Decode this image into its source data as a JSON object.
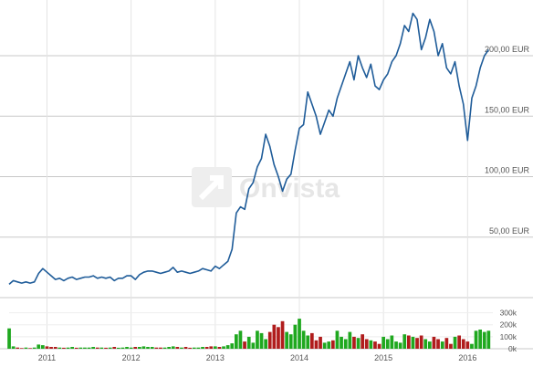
{
  "chart_data": [
    {
      "type": "line",
      "y_unit": "EUR",
      "ylim": [
        0,
        240
      ],
      "y_ticks": [
        {
          "value": 50,
          "label": "50,00 EUR"
        },
        {
          "value": 100,
          "label": "100,00 EUR"
        },
        {
          "value": 150,
          "label": "150,00 EUR"
        },
        {
          "value": 200,
          "label": "200,00 EUR"
        }
      ],
      "x_ticks": [
        {
          "x": 2011,
          "label": "2011"
        },
        {
          "x": 2012,
          "label": "2012"
        },
        {
          "x": 2013,
          "label": "2013"
        },
        {
          "x": 2014,
          "label": "2014"
        },
        {
          "x": 2015,
          "label": "2015"
        },
        {
          "x": 2016,
          "label": "2016"
        }
      ],
      "xlim": [
        2010.55,
        2016.3
      ],
      "grid": true,
      "color": "#1f5c99",
      "series": [
        {
          "x": [
            2010.55,
            2010.6,
            2010.65,
            2010.7,
            2010.75,
            2010.8,
            2010.85,
            2010.9,
            2010.95,
            2011.0,
            2011.05,
            2011.1,
            2011.15,
            2011.2,
            2011.25,
            2011.3,
            2011.35,
            2011.4,
            2011.45,
            2011.5,
            2011.55,
            2011.6,
            2011.65,
            2011.7,
            2011.75,
            2011.8,
            2011.85,
            2011.9,
            2011.95,
            2012.0,
            2012.05,
            2012.1,
            2012.15,
            2012.2,
            2012.25,
            2012.3,
            2012.35,
            2012.4,
            2012.45,
            2012.5,
            2012.55,
            2012.6,
            2012.65,
            2012.7,
            2012.75,
            2012.8,
            2012.85,
            2012.9,
            2012.95,
            2013.0,
            2013.05,
            2013.1,
            2013.15,
            2013.2,
            2013.25,
            2013.3,
            2013.35,
            2013.4,
            2013.45,
            2013.5,
            2013.55,
            2013.6,
            2013.65,
            2013.7,
            2013.75,
            2013.8,
            2013.85,
            2013.9,
            2013.95,
            2014.0,
            2014.05,
            2014.1,
            2014.15,
            2014.2,
            2014.25,
            2014.3,
            2014.35,
            2014.4,
            2014.45,
            2014.5,
            2014.55,
            2014.6,
            2014.65,
            2014.7,
            2014.75,
            2014.8,
            2014.85,
            2014.9,
            2014.95,
            2015.0,
            2015.05,
            2015.1,
            2015.15,
            2015.2,
            2015.25,
            2015.3,
            2015.35,
            2015.4,
            2015.45,
            2015.5,
            2015.55,
            2015.6,
            2015.65,
            2015.7,
            2015.75,
            2015.8,
            2015.85,
            2015.9,
            2015.95,
            2016.0,
            2016.05,
            2016.1,
            2016.15,
            2016.2,
            2016.25
          ],
          "y": [
            11,
            14,
            13,
            12,
            13,
            12,
            13,
            20,
            24,
            21,
            18,
            15,
            16,
            14,
            16,
            17,
            15,
            16,
            17,
            17,
            18,
            16,
            17,
            16,
            17,
            14,
            16,
            16,
            18,
            18,
            15,
            19,
            21,
            22,
            22,
            21,
            20,
            21,
            22,
            25,
            21,
            22,
            21,
            20,
            21,
            22,
            24,
            23,
            22,
            26,
            24,
            27,
            30,
            40,
            70,
            75,
            73,
            90,
            95,
            108,
            115,
            135,
            125,
            110,
            100,
            88,
            98,
            102,
            122,
            140,
            143,
            170,
            160,
            150,
            135,
            145,
            155,
            150,
            165,
            175,
            185,
            195,
            180,
            200,
            190,
            182,
            193,
            175,
            172,
            180,
            185,
            195,
            200,
            210,
            225,
            220,
            235,
            230,
            205,
            215,
            230,
            220,
            200,
            210,
            190,
            185,
            195,
            175,
            160,
            130,
            165,
            175,
            190,
            200,
            205
          ]
        }
      ],
      "watermark": "Onvista"
    },
    {
      "type": "bar",
      "ylim": [
        0,
        350000
      ],
      "y_ticks": [
        {
          "value": 0,
          "label": "0k"
        },
        {
          "value": 100000,
          "label": "100k"
        },
        {
          "value": 200000,
          "label": "200k"
        },
        {
          "value": 300000,
          "label": "300k"
        }
      ],
      "up_color": "#1fa81f",
      "down_color": "#b01c1c",
      "x": [
        2010.55,
        2010.6,
        2010.65,
        2010.7,
        2010.75,
        2010.8,
        2010.85,
        2010.9,
        2010.95,
        2011.0,
        2011.05,
        2011.1,
        2011.15,
        2011.2,
        2011.25,
        2011.3,
        2011.35,
        2011.4,
        2011.45,
        2011.5,
        2011.55,
        2011.6,
        2011.65,
        2011.7,
        2011.75,
        2011.8,
        2011.85,
        2011.9,
        2011.95,
        2012.0,
        2012.05,
        2012.1,
        2012.15,
        2012.2,
        2012.25,
        2012.3,
        2012.35,
        2012.4,
        2012.45,
        2012.5,
        2012.55,
        2012.6,
        2012.65,
        2012.7,
        2012.75,
        2012.8,
        2012.85,
        2012.9,
        2012.95,
        2013.0,
        2013.05,
        2013.1,
        2013.15,
        2013.2,
        2013.25,
        2013.3,
        2013.35,
        2013.4,
        2013.45,
        2013.5,
        2013.55,
        2013.6,
        2013.65,
        2013.7,
        2013.75,
        2013.8,
        2013.85,
        2013.9,
        2013.95,
        2014.0,
        2014.05,
        2014.1,
        2014.15,
        2014.2,
        2014.25,
        2014.3,
        2014.35,
        2014.4,
        2014.45,
        2014.5,
        2014.55,
        2014.6,
        2014.65,
        2014.7,
        2014.75,
        2014.8,
        2014.85,
        2014.9,
        2014.95,
        2015.0,
        2015.05,
        2015.1,
        2015.15,
        2015.2,
        2015.25,
        2015.3,
        2015.35,
        2015.4,
        2015.45,
        2015.5,
        2015.55,
        2015.6,
        2015.65,
        2015.7,
        2015.75,
        2015.8,
        2015.85,
        2015.9,
        2015.95,
        2016.0,
        2016.05,
        2016.1,
        2016.15,
        2016.2,
        2016.25
      ],
      "volumes": [
        170000,
        20000,
        10000,
        5000,
        10000,
        5000,
        10000,
        35000,
        30000,
        20000,
        15000,
        15000,
        10000,
        8000,
        10000,
        15000,
        8000,
        10000,
        10000,
        10000,
        15000,
        10000,
        10000,
        8000,
        10000,
        15000,
        8000,
        10000,
        15000,
        10000,
        15000,
        15000,
        20000,
        15000,
        15000,
        10000,
        10000,
        10000,
        15000,
        20000,
        15000,
        10000,
        15000,
        8000,
        10000,
        10000,
        15000,
        15000,
        20000,
        20000,
        15000,
        20000,
        30000,
        45000,
        120000,
        150000,
        60000,
        100000,
        50000,
        150000,
        130000,
        80000,
        140000,
        200000,
        180000,
        230000,
        140000,
        120000,
        200000,
        250000,
        150000,
        110000,
        130000,
        70000,
        100000,
        50000,
        60000,
        70000,
        150000,
        100000,
        80000,
        140000,
        100000,
        90000,
        120000,
        80000,
        70000,
        60000,
        40000,
        100000,
        80000,
        110000,
        60000,
        50000,
        120000,
        110000,
        100000,
        90000,
        110000,
        80000,
        60000,
        100000,
        80000,
        60000,
        90000,
        40000,
        100000,
        110000,
        80000,
        60000,
        40000,
        150000,
        160000,
        140000,
        150000
      ],
      "up": [
        true,
        true,
        false,
        false,
        true,
        false,
        true,
        true,
        true,
        false,
        false,
        false,
        true,
        false,
        true,
        true,
        false,
        true,
        true,
        true,
        true,
        false,
        true,
        false,
        true,
        false,
        true,
        true,
        true,
        true,
        false,
        true,
        true,
        true,
        true,
        false,
        false,
        true,
        true,
        true,
        false,
        true,
        false,
        false,
        true,
        true,
        true,
        false,
        false,
        true,
        false,
        true,
        true,
        true,
        true,
        true,
        false,
        true,
        true,
        true,
        true,
        true,
        false,
        false,
        false,
        false,
        true,
        true,
        true,
        true,
        true,
        true,
        false,
        false,
        false,
        true,
        true,
        false,
        true,
        true,
        true,
        true,
        false,
        true,
        false,
        false,
        true,
        false,
        false,
        true,
        true,
        true,
        true,
        true,
        true,
        false,
        true,
        false,
        false,
        true,
        true,
        false,
        false,
        true,
        false,
        false,
        true,
        false,
        false,
        false,
        true,
        true,
        true,
        true,
        true
      ]
    }
  ]
}
